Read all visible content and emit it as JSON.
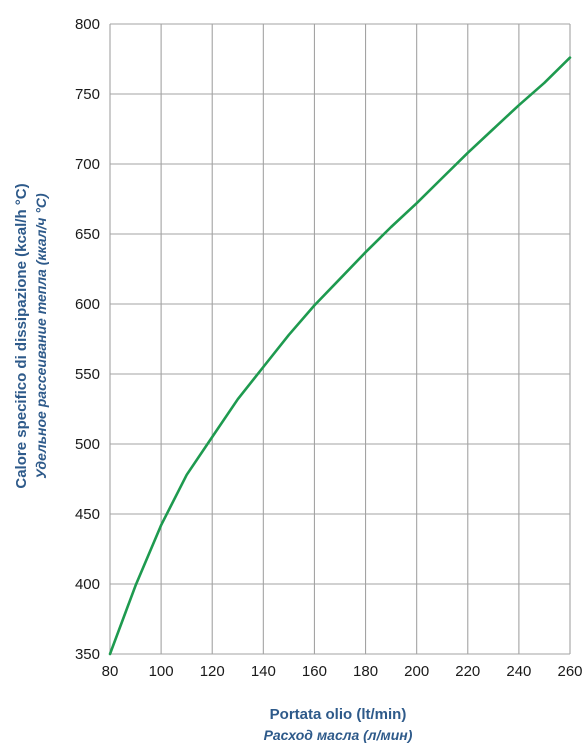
{
  "chart_data": {
    "type": "line",
    "title": "",
    "xlabel": "Portata olio (lt/min)",
    "xlabel_secondary": "Расход масла (л/мин)",
    "ylabel": "Calore specifico di dissipazione (kcal/h °C)",
    "ylabel_secondary": "Удельное рассеивание тепла (ккал/ч °C)",
    "xlim": [
      80,
      260
    ],
    "ylim": [
      350,
      800
    ],
    "xticks": [
      80,
      100,
      120,
      140,
      160,
      180,
      200,
      220,
      240,
      260
    ],
    "yticks": [
      350,
      400,
      450,
      500,
      550,
      600,
      650,
      700,
      750,
      800
    ],
    "grid": true,
    "series": [
      {
        "color": "#1e9a4f",
        "x": [
          80,
          90,
          100,
          110,
          120,
          130,
          140,
          150,
          160,
          170,
          180,
          190,
          200,
          210,
          220,
          230,
          240,
          250,
          260
        ],
        "y": [
          350,
          399,
          442,
          478,
          505,
          532,
          555,
          578,
          599,
          618,
          637,
          655,
          672,
          690,
          708,
          725,
          742,
          758,
          776
        ]
      }
    ]
  },
  "colors": {
    "line": "#1e9a4f",
    "grid": "#a3a3a3",
    "axis_label": "#2e5a8a"
  }
}
